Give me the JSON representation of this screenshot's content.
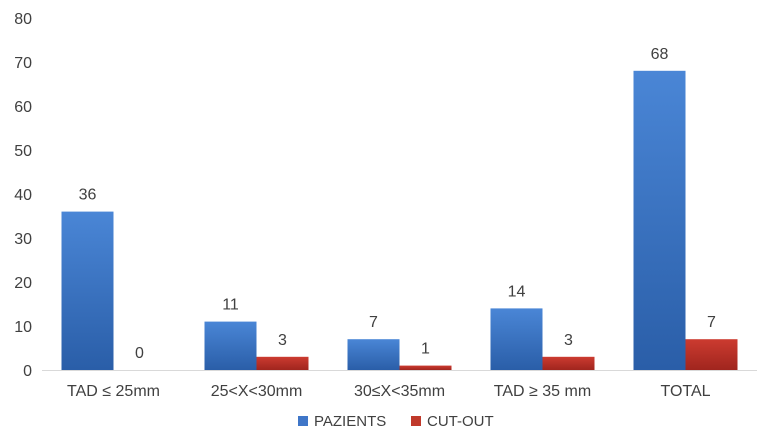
{
  "chart_data": {
    "type": "bar",
    "title": "",
    "xlabel": "",
    "ylabel": "",
    "categories": [
      "TAD ≤ 25mm",
      "25<X<30mm",
      "30≤X<35mm",
      "TAD ≥ 35 mm",
      "TOTAL"
    ],
    "series": [
      {
        "name": "PAZIENTS",
        "values": [
          36,
          11,
          7,
          14,
          68
        ],
        "color": "#3f76c8",
        "color_dark": "#1f4f96"
      },
      {
        "name": "CUT-OUT",
        "values": [
          0,
          3,
          1,
          3,
          7
        ],
        "color": "#c0392b",
        "color_dark": "#8e1f1a"
      }
    ],
    "ylim": [
      0,
      80
    ],
    "yticks": [
      0,
      10,
      20,
      30,
      40,
      50,
      60,
      70,
      80
    ],
    "data_labels": true,
    "grid": false,
    "legend": "bottom"
  }
}
